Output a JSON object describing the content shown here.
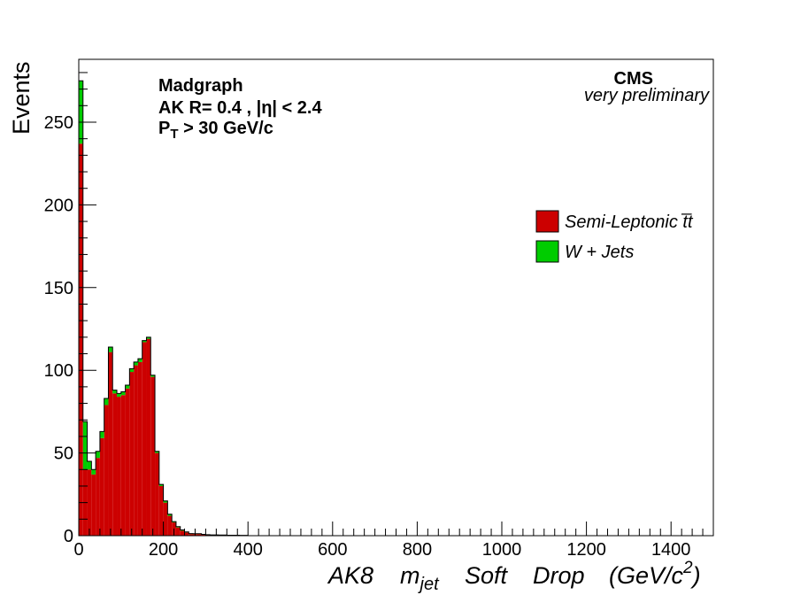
{
  "chart_data": {
    "type": "bar",
    "stacked": true,
    "xlabel_parts": {
      "a": "AK8",
      "m": "m",
      "msub": "jet",
      "soft": "Soft",
      "drop": "Drop",
      "unit_open": "(GeV/c",
      "unit_sup": "2",
      "unit_close": ")"
    },
    "ylabel": "Events",
    "xlim": [
      0,
      1500
    ],
    "ylim": [
      0,
      288
    ],
    "x_ticks": [
      0,
      200,
      400,
      600,
      800,
      1000,
      1200,
      1400
    ],
    "y_ticks": [
      0,
      50,
      100,
      150,
      200,
      250
    ],
    "bin_width": 10,
    "legend_position": "right",
    "annotations": {
      "generator": "Madgraph",
      "jet_line": "AK R= 0.4 , |η| < 2.4",
      "pt_main": "P",
      "pt_sub": "T",
      "pt_rest": " > 30 GeV/c",
      "experiment": "CMS",
      "status": "very preliminary"
    },
    "series": [
      {
        "name": "Semi-Leptonic t̅t",
        "color": "#cc0000",
        "values": [
          237,
          40,
          40,
          37,
          47,
          59,
          79,
          111,
          86,
          84,
          85,
          89,
          99,
          103,
          105,
          117,
          119,
          96,
          50,
          30,
          20,
          12,
          8,
          5,
          3,
          2,
          1,
          1,
          1,
          0.6,
          0.5,
          0.4,
          0.4,
          0.3,
          0.3,
          0.2,
          0.2,
          0.2,
          0.1,
          0.1
        ]
      },
      {
        "name": "W + Jets",
        "color": "#00cc00",
        "values": [
          38,
          29,
          5,
          3,
          4,
          4,
          4,
          3,
          2,
          2,
          2,
          2,
          2,
          2,
          2,
          1,
          1,
          1,
          1,
          1,
          1,
          1,
          0.5,
          0.5,
          0.5,
          0.3,
          0.3,
          0.2,
          0.2,
          0.2,
          0.1,
          0.1,
          0.1,
          0.1,
          0.1,
          0.1,
          0.1,
          0.1,
          0.1,
          0.1
        ]
      }
    ]
  }
}
